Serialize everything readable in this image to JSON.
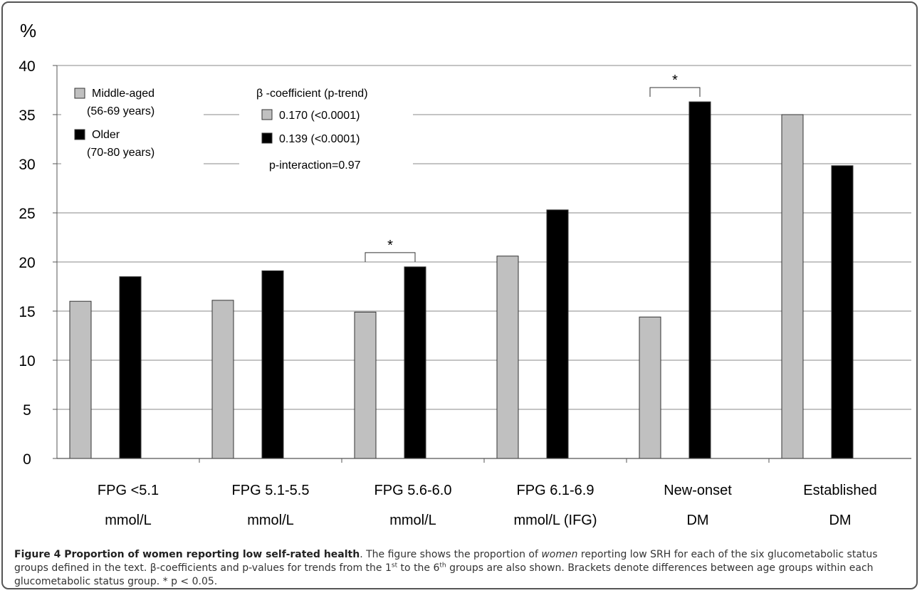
{
  "chart_data": {
    "type": "bar",
    "ylabel": "%",
    "ylim": [
      0,
      40
    ],
    "yticks": [
      "0",
      "5",
      "10",
      "15",
      "20",
      "25",
      "30",
      "35",
      "40"
    ],
    "grid": true,
    "categories": [
      [
        "FPG <5.1",
        "mmol/L"
      ],
      [
        "FPG 5.1-5.5",
        "mmol/L"
      ],
      [
        "FPG 5.6-6.0",
        "mmol/L"
      ],
      [
        "FPG 6.1-6.9",
        "mmol/L (IFG)"
      ],
      [
        "New-onset",
        "DM"
      ],
      [
        "Established",
        "DM"
      ]
    ],
    "series": [
      {
        "name": "Middle-aged (56-69 years)",
        "label_lines": [
          "Middle-aged",
          "(56-69  years)"
        ],
        "color": "#c0c0c0",
        "values": [
          16.0,
          16.1,
          14.9,
          20.6,
          14.4,
          35.0
        ]
      },
      {
        "name": "Older (70-80 years)",
        "label_lines": [
          "Older",
          "(70-80  years)"
        ],
        "color": "#000000",
        "values": [
          18.5,
          19.1,
          19.5,
          25.3,
          36.3,
          29.8
        ]
      }
    ],
    "legend_position": "top-left",
    "annotations": {
      "beta_title": "β -coefficient (p-trend)",
      "beta_rows": [
        "0.170 (<0.0001)",
        "0.139 (<0.0001)"
      ],
      "p_interaction": "p-interaction=0.97",
      "significance_marker": "*",
      "significant_groups": [
        2,
        4
      ]
    }
  },
  "caption": {
    "title": "Figure 4 Proportion of women reporting low self-rated health",
    "text_1": ". The figure shows the proportion of ",
    "text_italic": "women",
    "text_2": " reporting low SRH for each of the six glucometabolic status groups defined in the text. ",
    "text_3": "-coefficients and p-values for trends from the 1",
    "sup_1": "st",
    "text_4": " to the 6",
    "sup_2": "th",
    "text_5": " groups are also shown. Brackets denote differences between age groups within each glucometabolic status group. * p < 0.05.",
    "beta_symbol": "β"
  }
}
